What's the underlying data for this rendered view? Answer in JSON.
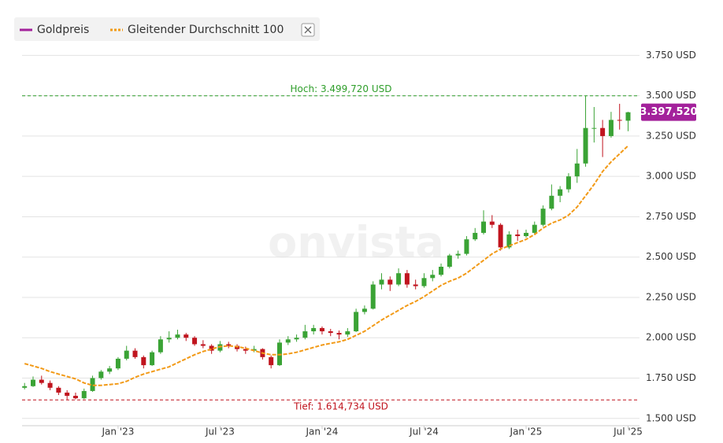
{
  "chart_data": {
    "type": "candlestick",
    "watermark": "onvista",
    "categories": [
      null,
      null,
      null,
      null,
      null,
      null,
      null,
      null,
      null,
      null,
      null,
      "Jan '23",
      null,
      null,
      null,
      null,
      null,
      null,
      null,
      null,
      null,
      null,
      null,
      "Jul '23",
      null,
      null,
      null,
      null,
      null,
      null,
      null,
      null,
      null,
      null,
      null,
      "Jan '24",
      null,
      null,
      null,
      null,
      null,
      null,
      null,
      null,
      null,
      null,
      null,
      "Jul '24",
      null,
      null,
      null,
      null,
      null,
      null,
      null,
      null,
      null,
      null,
      null,
      "Jan '25",
      null,
      null,
      null,
      null,
      null,
      null,
      null,
      null,
      null,
      null,
      null,
      "Jul '25"
    ],
    "up_color": "#3aa335",
    "down_color": "#c0141e",
    "series": [
      {
        "name": "Goldpreis",
        "color": "#a3219b",
        "open": [
          1690,
          1700,
          1740,
          1720,
          1690,
          1660,
          1640,
          1625,
          1670,
          1750,
          1790,
          1810,
          1870,
          1920,
          1880,
          1830,
          1910,
          1990,
          2000,
          2020,
          2000,
          1960,
          1950,
          1920,
          1960,
          1950,
          1930,
          1920,
          1930,
          1880,
          1830,
          1970,
          1990,
          2000,
          2040,
          2060,
          2040,
          2030,
          2020,
          2040,
          2160,
          2180,
          2330,
          2360,
          2330,
          2400,
          2330,
          2320,
          2370,
          2390,
          2440,
          2510,
          2520,
          2610,
          2650,
          2720,
          2700,
          2560,
          2640,
          2630,
          2650,
          2700,
          2800,
          2880,
          2920,
          3000,
          3080,
          3300,
          3300,
          3250,
          3350,
          3345
        ],
        "high": [
          1720,
          1760,
          1765,
          1735,
          1700,
          1675,
          1660,
          1685,
          1765,
          1800,
          1825,
          1880,
          1950,
          1935,
          1890,
          1920,
          2010,
          2040,
          2050,
          2030,
          2010,
          1985,
          1960,
          1980,
          1975,
          1960,
          1945,
          1950,
          1935,
          1890,
          1990,
          2010,
          2020,
          2080,
          2080,
          2070,
          2055,
          2045,
          2060,
          2180,
          2200,
          2350,
          2400,
          2380,
          2430,
          2420,
          2360,
          2400,
          2420,
          2460,
          2520,
          2540,
          2630,
          2680,
          2790,
          2760,
          2710,
          2660,
          2670,
          2670,
          2720,
          2820,
          2950,
          2940,
          3020,
          3170,
          3499.72,
          3430,
          3350,
          3400,
          3450,
          3400
        ],
        "low": [
          1680,
          1695,
          1710,
          1675,
          1645,
          1614.734,
          1618,
          1620,
          1665,
          1740,
          1775,
          1800,
          1860,
          1870,
          1810,
          1825,
          1900,
          1970,
          1990,
          1980,
          1950,
          1935,
          1900,
          1910,
          1935,
          1915,
          1900,
          1910,
          1865,
          1810,
          1825,
          1955,
          1975,
          1990,
          2020,
          2020,
          2010,
          1990,
          2005,
          2035,
          2145,
          2175,
          2300,
          2290,
          2320,
          2310,
          2300,
          2310,
          2350,
          2380,
          2430,
          2490,
          2510,
          2600,
          2640,
          2680,
          2540,
          2550,
          2600,
          2620,
          2640,
          2690,
          2790,
          2840,
          2900,
          2960,
          3060,
          3210,
          3120,
          3240,
          3290,
          3280
        ],
        "close": [
          1700,
          1740,
          1720,
          1690,
          1660,
          1640,
          1625,
          1670,
          1750,
          1790,
          1810,
          1870,
          1920,
          1880,
          1830,
          1910,
          1990,
          2000,
          2020,
          2000,
          1960,
          1950,
          1920,
          1960,
          1950,
          1930,
          1920,
          1930,
          1880,
          1830,
          1970,
          1990,
          2000,
          2040,
          2060,
          2040,
          2030,
          2020,
          2040,
          2160,
          2180,
          2330,
          2360,
          2330,
          2400,
          2330,
          2320,
          2370,
          2390,
          2440,
          2510,
          2520,
          2610,
          2650,
          2720,
          2700,
          2560,
          2640,
          2630,
          2650,
          2700,
          2800,
          2880,
          2920,
          3000,
          3080,
          3300,
          3300,
          3250,
          3350,
          3345,
          3397.52
        ]
      },
      {
        "name": "Gleitender Durchschnitt 100",
        "color": "#f29a17",
        "values": [
          1840,
          1825,
          1810,
          1790,
          1775,
          1760,
          1745,
          1720,
          1705,
          1705,
          1710,
          1715,
          1730,
          1755,
          1775,
          1790,
          1805,
          1820,
          1845,
          1870,
          1895,
          1915,
          1930,
          1945,
          1950,
          1945,
          1935,
          1920,
          1905,
          1895,
          1895,
          1900,
          1910,
          1925,
          1940,
          1955,
          1965,
          1975,
          1990,
          2015,
          2040,
          2075,
          2110,
          2140,
          2170,
          2200,
          2225,
          2255,
          2290,
          2325,
          2350,
          2370,
          2400,
          2440,
          2480,
          2520,
          2550,
          2570,
          2590,
          2610,
          2640,
          2680,
          2710,
          2730,
          2760,
          2810,
          2880,
          2950,
          3030,
          3090,
          3140,
          3190
        ]
      }
    ],
    "high_line": {
      "value": 3499.72,
      "label": "Hoch: 3.499,720 USD",
      "color": "#2e9e2a"
    },
    "low_line": {
      "value": 1614.734,
      "label": "Tief: 1.614,734 USD",
      "color": "#c0141e"
    },
    "last_price": {
      "value": 3397.52,
      "label": "3.397,520"
    },
    "ylim": [
      1455,
      3825
    ],
    "yticks": [
      {
        "value": 1500,
        "label": "1.500 USD"
      },
      {
        "value": 1750,
        "label": "1.750 USD"
      },
      {
        "value": 2000,
        "label": "2.000 USD"
      },
      {
        "value": 2250,
        "label": "2.250 USD"
      },
      {
        "value": 2500,
        "label": "2.500 USD"
      },
      {
        "value": 2750,
        "label": "2.750 USD"
      },
      {
        "value": 3000,
        "label": "3.000 USD"
      },
      {
        "value": 3250,
        "label": "3.250 USD"
      },
      {
        "value": 3500,
        "label": "3.500 USD"
      },
      {
        "value": 3750,
        "label": "3.750 USD"
      }
    ],
    "grid": true
  }
}
